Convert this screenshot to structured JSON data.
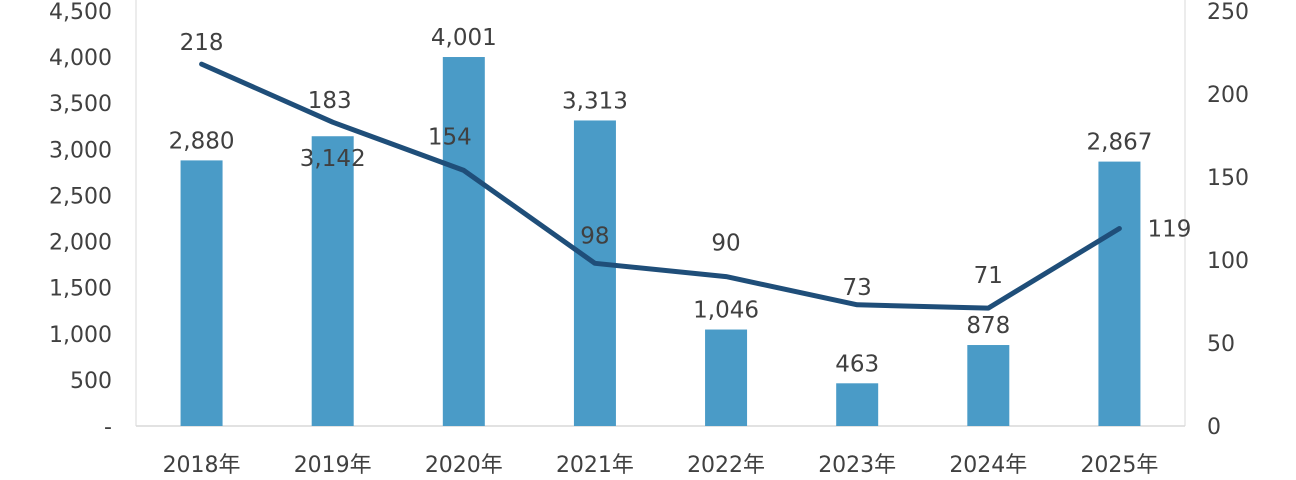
{
  "chart_data": {
    "type": "bar",
    "title": "",
    "xlabel": "",
    "ylabel": "",
    "categories": [
      "2018年",
      "2019年",
      "2020年",
      "2021年",
      "2022年",
      "2023年",
      "2024年",
      "2025年"
    ],
    "series": [
      {
        "type": "bar",
        "axis": "left",
        "values": [
          2880,
          3142,
          4001,
          3313,
          1046,
          463,
          878,
          2867
        ],
        "labels": [
          "2,880",
          "3,142",
          "4,001",
          "3,313",
          "1,046",
          "463",
          "878",
          "2,867"
        ],
        "color": "#4a9bc7"
      },
      {
        "type": "line",
        "axis": "right",
        "values": [
          218,
          183,
          154,
          98,
          90,
          73,
          71,
          119
        ],
        "labels": [
          "218",
          "183",
          "154",
          "98",
          "90",
          "73",
          "71",
          "119"
        ],
        "color": "#1f4e79"
      }
    ],
    "ylim_left": [
      0,
      4500
    ],
    "ylim_right": [
      0,
      250
    ],
    "left_ticks": [
      "-",
      "500",
      "1,000",
      "1,500",
      "2,000",
      "2,500",
      "3,000",
      "3,500",
      "4,000",
      "4,500"
    ],
    "right_ticks": [
      "0",
      "50",
      "100",
      "150",
      "200",
      "250"
    ],
    "grid": false,
    "legend": "none"
  }
}
